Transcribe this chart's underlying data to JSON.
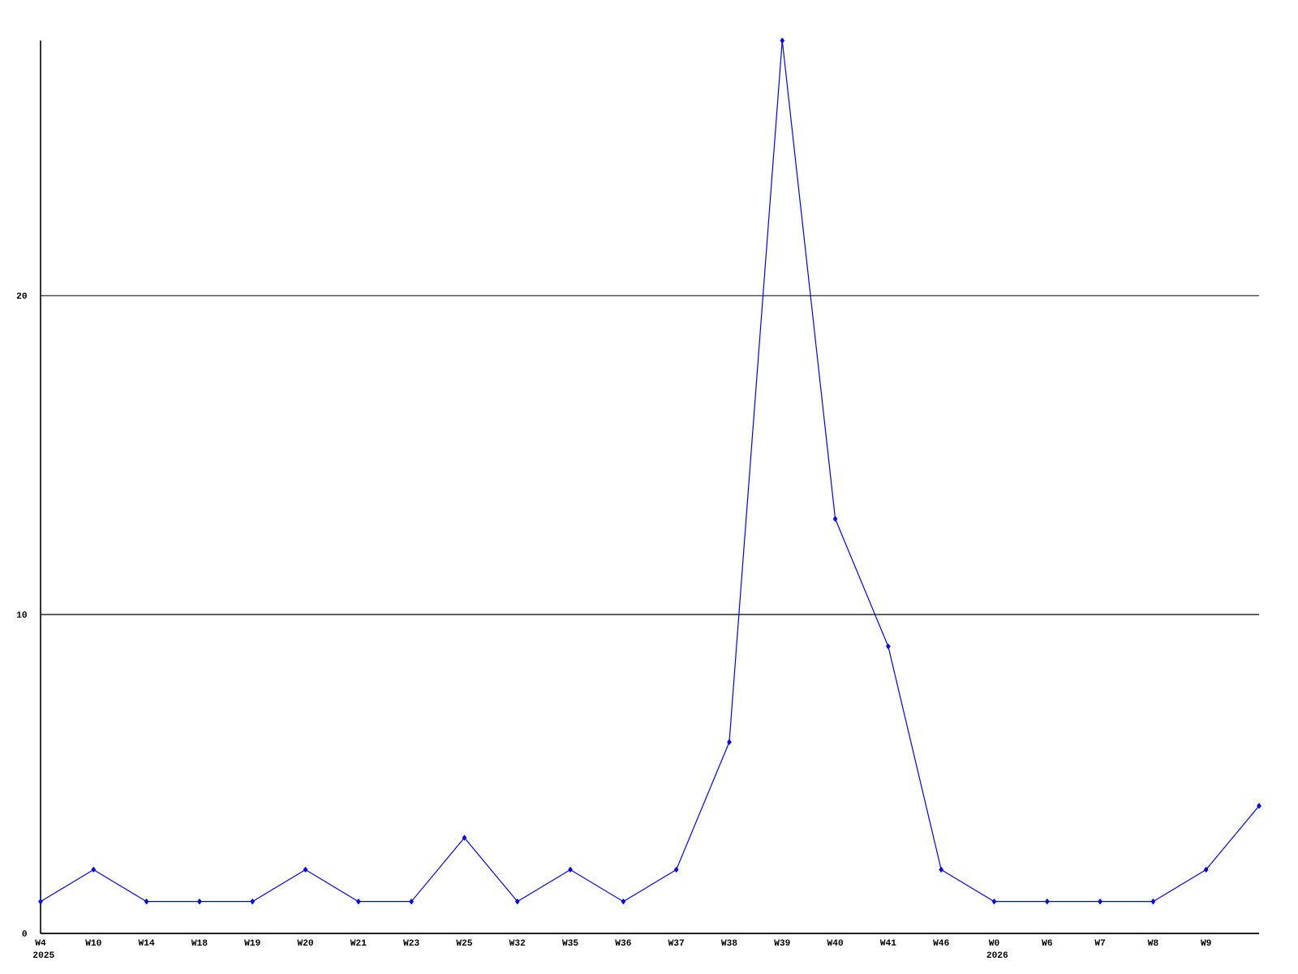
{
  "chart_data": {
    "type": "line",
    "categories": [
      "W4",
      "W10",
      "W14",
      "W18",
      "W19",
      "W20",
      "W21",
      "W23",
      "W25",
      "W32",
      "W35",
      "W36",
      "W37",
      "W38",
      "W39",
      "W40",
      "W41",
      "W46",
      "W0",
      "W6",
      "W7",
      "W8",
      "W9",
      null
    ],
    "values": [
      1,
      2,
      1,
      1,
      1,
      2,
      1,
      1,
      3,
      1,
      2,
      1,
      2,
      6,
      28,
      13,
      9,
      2,
      1,
      1,
      1,
      1,
      2,
      4
    ],
    "color": "#0000ff",
    "ylim": [
      0,
      28
    ],
    "yticks": [
      0,
      10,
      20
    ],
    "grid": "y",
    "marker": "diamond",
    "line_style": "solid",
    "annotations": [
      "2025",
      "2026"
    ]
  }
}
